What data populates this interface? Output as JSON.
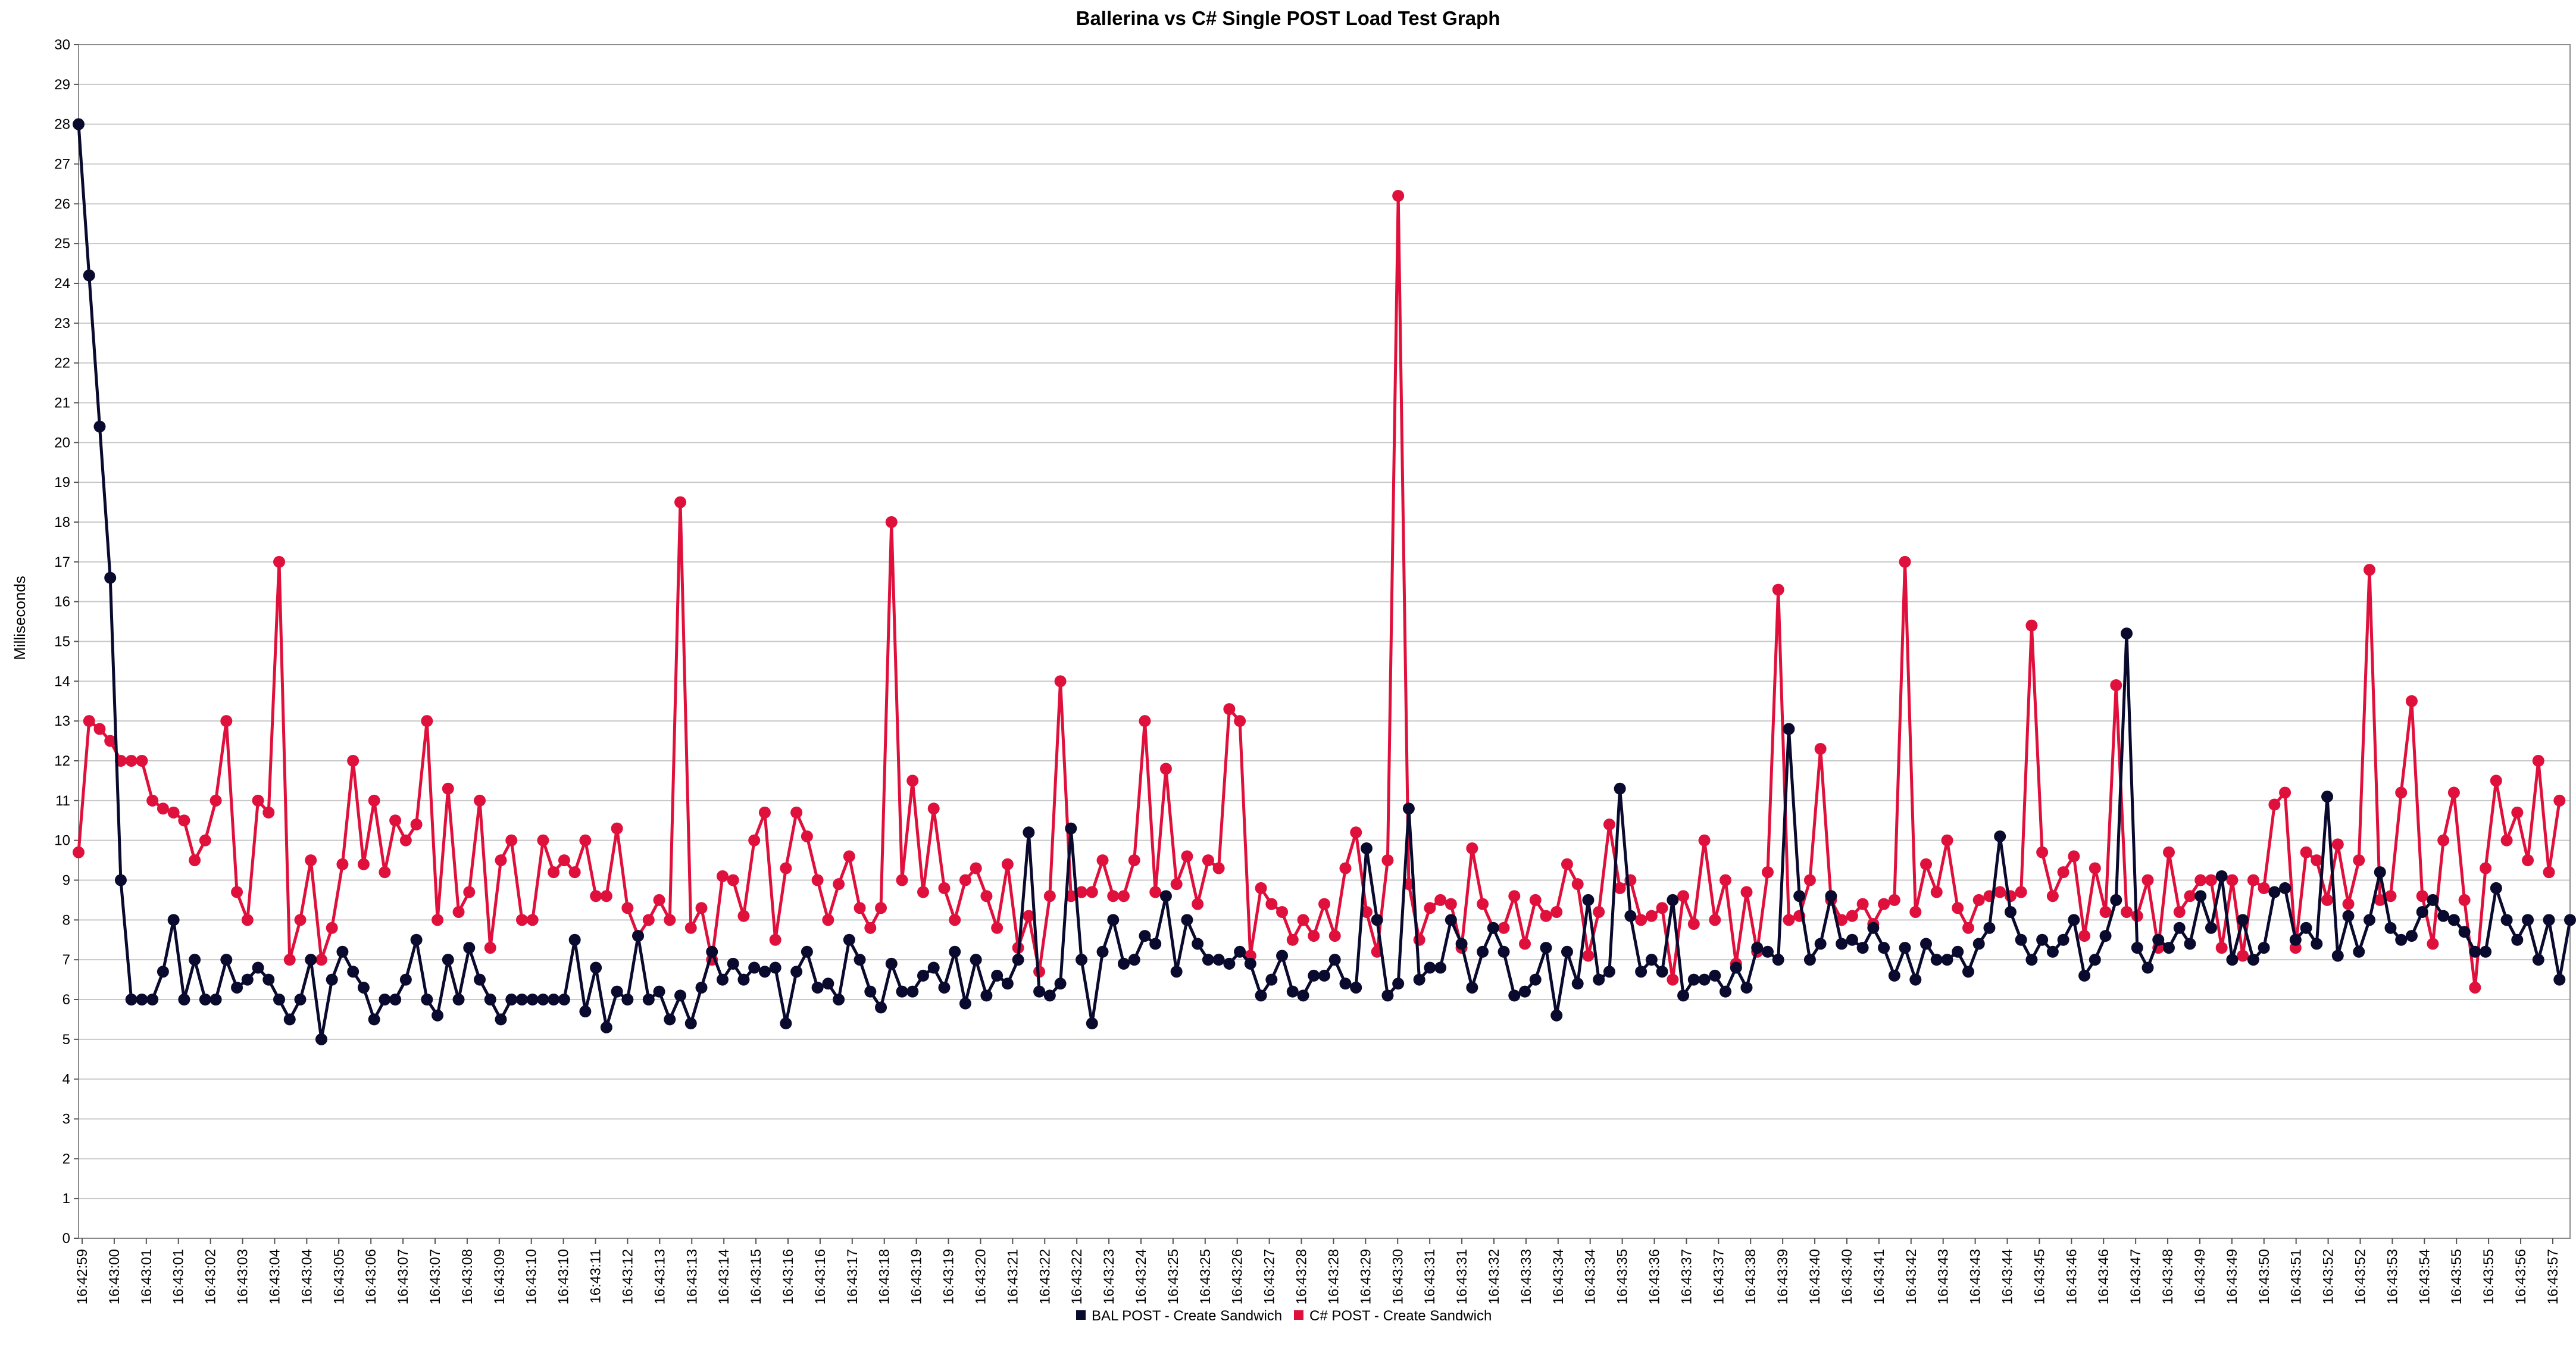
{
  "chart_data": {
    "type": "line",
    "title": "Ballerina vs C# Single POST Load Test Graph",
    "xlabel": "",
    "ylabel": "Milliseconds",
    "ylim": [
      0,
      30
    ],
    "y_ticks": [
      0,
      1,
      2,
      3,
      4,
      5,
      6,
      7,
      8,
      9,
      10,
      11,
      12,
      13,
      14,
      15,
      16,
      17,
      18,
      19,
      20,
      21,
      22,
      23,
      24,
      25,
      26,
      27,
      28,
      29,
      30
    ],
    "grid": true,
    "legend_position": "bottom",
    "x_tick_labels": [
      "16:42:59",
      "16:43:00",
      "16:43:01",
      "16:43:01",
      "16:43:02",
      "16:43:03",
      "16:43:04",
      "16:43:04",
      "16:43:05",
      "16:43:06",
      "16:43:07",
      "16:43:07",
      "16:43:08",
      "16:43:09",
      "16:43:10",
      "16:43:10",
      "16:43:11",
      "16:43:12",
      "16:43:13",
      "16:43:13",
      "16:43:14",
      "16:43:15",
      "16:43:16",
      "16:43:16",
      "16:43:17",
      "16:43:18",
      "16:43:19",
      "16:43:19",
      "16:43:20",
      "16:43:21",
      "16:43:22",
      "16:43:22",
      "16:43:23",
      "16:43:24",
      "16:43:25",
      "16:43:25",
      "16:43:26",
      "16:43:27",
      "16:43:28",
      "16:43:28",
      "16:43:29",
      "16:43:30",
      "16:43:31",
      "16:43:31",
      "16:43:32",
      "16:43:33",
      "16:43:34",
      "16:43:34",
      "16:43:35",
      "16:43:36",
      "16:43:37",
      "16:43:37",
      "16:43:38",
      "16:43:39",
      "16:43:40",
      "16:43:40",
      "16:43:41",
      "16:43:42",
      "16:43:43",
      "16:43:43",
      "16:43:44",
      "16:43:45",
      "16:43:46",
      "16:43:46",
      "16:43:47",
      "16:43:48",
      "16:43:49",
      "16:43:49",
      "16:43:50",
      "16:43:51",
      "16:43:52",
      "16:43:52",
      "16:43:53",
      "16:43:54",
      "16:43:55",
      "16:43:55",
      "16:43:56",
      "16:43:57"
    ],
    "series": [
      {
        "name": "BAL POST - Create Sandwich",
        "color": "#0a0a2e",
        "values": [
          28,
          24.2,
          20.4,
          16.6,
          9,
          6,
          6,
          6,
          6.7,
          8,
          6,
          7,
          6,
          6,
          7,
          6.3,
          6.5,
          6.8,
          6.5,
          6,
          5.5,
          6,
          7,
          5,
          6.5,
          7.2,
          6.7,
          6.3,
          5.5,
          6,
          6,
          6.5,
          7.5,
          6,
          5.6,
          7,
          6,
          7.3,
          6.5,
          6,
          5.5,
          6,
          6,
          6,
          6,
          6,
          6,
          7.5,
          5.7,
          6.8,
          5.3,
          6.2,
          6,
          7.6,
          6,
          6.2,
          5.5,
          6.1,
          5.4,
          6.3,
          7.2,
          6.5,
          6.9,
          6.5,
          6.8,
          6.7,
          6.8,
          5.4,
          6.7,
          7.2,
          6.3,
          6.4,
          6,
          7.5,
          7,
          6.2,
          5.8,
          6.9,
          6.2,
          6.2,
          6.6,
          6.8,
          6.3,
          7.2,
          5.9,
          7,
          6.1,
          6.6,
          6.4,
          7,
          10.2,
          6.2,
          6.1,
          6.4,
          10.3,
          7,
          5.4,
          7.2,
          8,
          6.9,
          7,
          7.6,
          7.4,
          8.6,
          6.7,
          8,
          7.4,
          7,
          7,
          6.9,
          7.2,
          6.9,
          6.1,
          6.5,
          7.1,
          6.2,
          6.1,
          6.6,
          6.6,
          7,
          6.4,
          6.3,
          9.8,
          8,
          6.1,
          6.4,
          10.8,
          6.5,
          6.8,
          6.8,
          8,
          7.4,
          6.3,
          7.2,
          7.8,
          7.2,
          6.1,
          6.2,
          6.5,
          7.3,
          5.6,
          7.2,
          6.4,
          8.5,
          6.5,
          6.7,
          11.3,
          8.1,
          6.7,
          7,
          6.7,
          8.5,
          6.1,
          6.5,
          6.5,
          6.6,
          6.2,
          6.8,
          6.3,
          7.3,
          7.2,
          7,
          12.8,
          8.6,
          7,
          7.4,
          8.6,
          7.4,
          7.5,
          7.3,
          7.8,
          7.3,
          6.6,
          7.3,
          6.5,
          7.4,
          7,
          7,
          7.2,
          6.7,
          7.4,
          7.8,
          10.1,
          8.2,
          7.5,
          7,
          7.5,
          7.2,
          7.5,
          8,
          6.6,
          7,
          7.6,
          8.5,
          15.2,
          7.3,
          6.8,
          7.5,
          7.3,
          7.8,
          7.4,
          8.6,
          7.8,
          9.1,
          7,
          8,
          7,
          7.3,
          8.7,
          8.8,
          7.5,
          7.8,
          7.4,
          11.1,
          7.1,
          8.1,
          7.2,
          8,
          9.2,
          7.8,
          7.5,
          7.6,
          8.2,
          8.5,
          8.1,
          8,
          7.7,
          7.2,
          7.2,
          8.8,
          8,
          7.5,
          8,
          7,
          8,
          6.5,
          8
        ]
      },
      {
        "name": "C# POST - Create Sandwich",
        "color": "#e0103c",
        "values": [
          9.7,
          13,
          12.8,
          12.5,
          12,
          12,
          12,
          11,
          10.8,
          10.7,
          10.5,
          9.5,
          10,
          11,
          13,
          8.7,
          8,
          11,
          10.7,
          17,
          7,
          8,
          9.5,
          7,
          7.8,
          9.4,
          12,
          9.4,
          11,
          9.2,
          10.5,
          10,
          10.4,
          13,
          8,
          11.3,
          8.2,
          8.7,
          11,
          7.3,
          9.5,
          10,
          8,
          8,
          10,
          9.2,
          9.5,
          9.2,
          10,
          8.6,
          8.6,
          10.3,
          8.3,
          7.6,
          8,
          8.5,
          8,
          18.5,
          7.8,
          8.3,
          7,
          9.1,
          9,
          8.1,
          10,
          10.7,
          7.5,
          9.3,
          10.7,
          10.1,
          9,
          8,
          8.9,
          9.6,
          8.3,
          7.8,
          8.3,
          18,
          9,
          11.5,
          8.7,
          10.8,
          8.8,
          8,
          9,
          9.3,
          8.6,
          7.8,
          9.4,
          7.3,
          8.1,
          6.7,
          8.6,
          14,
          8.6,
          8.7,
          8.7,
          9.5,
          8.6,
          8.6,
          9.5,
          13,
          8.7,
          11.8,
          8.9,
          9.6,
          8.4,
          9.5,
          9.3,
          13.3,
          13,
          7.1,
          8.8,
          8.4,
          8.2,
          7.5,
          8,
          7.6,
          8.4,
          7.6,
          9.3,
          10.2,
          8.2,
          7.2,
          9.5,
          26.2,
          8.9,
          7.5,
          8.3,
          8.5,
          8.4,
          7.3,
          9.8,
          8.4,
          7.8,
          7.8,
          8.6,
          7.4,
          8.5,
          8.1,
          8.2,
          9.4,
          8.9,
          7.1,
          8.2,
          10.4,
          8.8,
          9,
          8,
          8.1,
          8.3,
          6.5,
          8.6,
          7.9,
          10,
          8,
          9,
          6.9,
          8.7,
          7.2,
          9.2,
          16.3,
          8,
          8.1,
          9,
          12.3,
          8.5,
          8,
          8.1,
          8.4,
          7.9,
          8.4,
          8.5,
          17,
          8.2,
          9.4,
          8.7,
          10,
          8.3,
          7.8,
          8.5,
          8.6,
          8.7,
          8.6,
          8.7,
          15.4,
          9.7,
          8.6,
          9.2,
          9.6,
          7.6,
          9.3,
          8.2,
          13.9,
          8.2,
          8.1,
          9,
          7.3,
          9.7,
          8.2,
          8.6,
          9,
          9,
          7.3,
          9,
          7.1,
          9,
          8.8,
          10.9,
          11.2,
          7.3,
          9.7,
          9.5,
          8.5,
          9.9,
          8.4,
          9.5,
          16.8,
          8.5,
          8.6,
          11.2,
          13.5,
          8.6,
          7.4,
          10,
          11.2,
          8.5,
          6.3,
          9.3,
          11.5,
          10,
          10.7,
          9.5,
          12,
          9.2,
          11
        ]
      }
    ]
  }
}
